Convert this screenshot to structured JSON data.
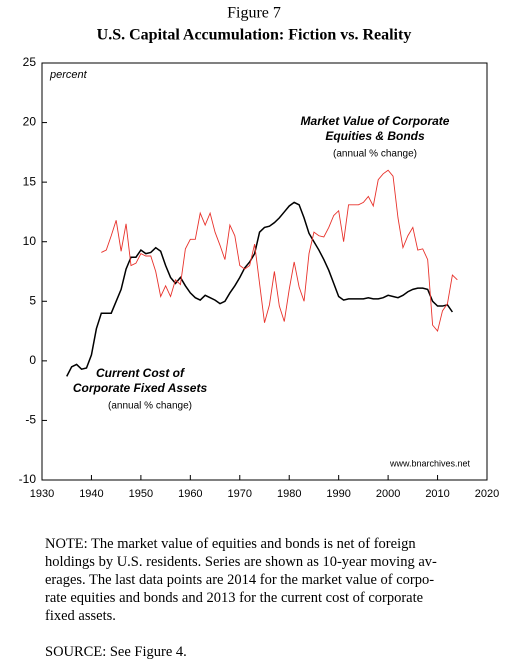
{
  "chart_data": {
    "type": "line",
    "title": "Figure 7",
    "subtitle": "U.S. Capital Accumulation: Fiction vs. Reality",
    "ylabel": "percent",
    "credit": "www.bnarchives.net",
    "annotations": [
      {
        "lines": [
          "Market Value of Corporate",
          "Equities & Bonds"
        ],
        "sub": "(annual % change)"
      },
      {
        "lines": [
          "Current Cost of",
          "Corporate Fixed Assets"
        ],
        "sub": "(annual % change)"
      }
    ],
    "x": [
      1935,
      1936,
      1937,
      1938,
      1939,
      1940,
      1941,
      1942,
      1943,
      1944,
      1945,
      1946,
      1947,
      1948,
      1949,
      1950,
      1951,
      1952,
      1953,
      1954,
      1955,
      1956,
      1957,
      1958,
      1959,
      1960,
      1961,
      1962,
      1963,
      1964,
      1965,
      1966,
      1967,
      1968,
      1969,
      1970,
      1971,
      1972,
      1973,
      1974,
      1975,
      1976,
      1977,
      1978,
      1979,
      1980,
      1981,
      1982,
      1983,
      1984,
      1985,
      1986,
      1987,
      1988,
      1989,
      1990,
      1991,
      1992,
      1993,
      1994,
      1995,
      1996,
      1997,
      1998,
      1999,
      2000,
      2001,
      2002,
      2003,
      2004,
      2005,
      2006,
      2007,
      2008,
      2009,
      2010,
      2011,
      2012,
      2013,
      2014
    ],
    "series": [
      {
        "name": "Current Cost of Corporate Fixed Assets",
        "color": "#000000",
        "values": [
          -1.3,
          -0.5,
          -0.3,
          -0.7,
          -0.6,
          0.5,
          2.7,
          4,
          4,
          4,
          5,
          6,
          7.7,
          8.7,
          8.7,
          9.3,
          9,
          9.1,
          9.5,
          9.2,
          8,
          7,
          6.5,
          7,
          6.3,
          5.7,
          5.3,
          5.1,
          5.5,
          5.3,
          5.1,
          4.8,
          5,
          5.7,
          6.3,
          7,
          7.8,
          8.3,
          9,
          10.8,
          11.2,
          11.3,
          11.6,
          12,
          12.5,
          13,
          13.3,
          13.1,
          12,
          10.7,
          10,
          9.3,
          8.5,
          7.6,
          6.5,
          5.4,
          5.1,
          5.2,
          5.2,
          5.2,
          5.2,
          5.3,
          5.2,
          5.2,
          5.3,
          5.5,
          5.4,
          5.3,
          5.5,
          5.8,
          6,
          6.1,
          6.1,
          6,
          5,
          4.6,
          4.6,
          4.7,
          4.1,
          null
        ]
      },
      {
        "name": "Market Value of Corporate Equities & Bonds",
        "color": "#e8322b",
        "values": [
          null,
          null,
          null,
          null,
          null,
          null,
          null,
          9.1,
          9.3,
          10.5,
          11.8,
          9.2,
          11.5,
          8,
          8.2,
          9,
          8.8,
          8.8,
          7.5,
          5.4,
          6.3,
          5.4,
          6.8,
          6.4,
          9.4,
          10.2,
          10.2,
          12.4,
          11.4,
          12.4,
          10.8,
          9.7,
          8.5,
          11.4,
          10.5,
          8,
          7.7,
          8,
          9.8,
          6.5,
          3.2,
          4.7,
          7.5,
          4.6,
          3.3,
          6,
          8.3,
          6.2,
          5,
          9,
          10.8,
          10.5,
          10.4,
          11.2,
          12.2,
          12.6,
          10,
          13.1,
          13.1,
          13.1,
          13.3,
          13.8,
          13,
          15.2,
          15.7,
          16,
          15.5,
          12,
          9.5,
          10.5,
          11.2,
          9.3,
          9.4,
          8.5,
          3,
          2.5,
          4.2,
          4.8,
          7.2,
          6.8
        ]
      }
    ],
    "xlim": [
      1930,
      2020
    ],
    "xticks": [
      1930,
      1940,
      1950,
      1960,
      1970,
      1980,
      1990,
      2000,
      2010,
      2020
    ],
    "ylim": [
      -10,
      25
    ],
    "yticks": [
      -10,
      -5,
      0,
      5,
      10,
      15,
      20,
      25
    ]
  },
  "note": [
    "NOTE: The market value of equities and bonds is net of foreign",
    "holdings by U.S. residents. Series are shown as 10-year moving av-",
    "erages. The last data points are 2014 for the market value of corpo-",
    "rate equities and bonds and 2013 for the current cost of corporate",
    "fixed assets."
  ],
  "source": "SOURCE: See Figure 4."
}
